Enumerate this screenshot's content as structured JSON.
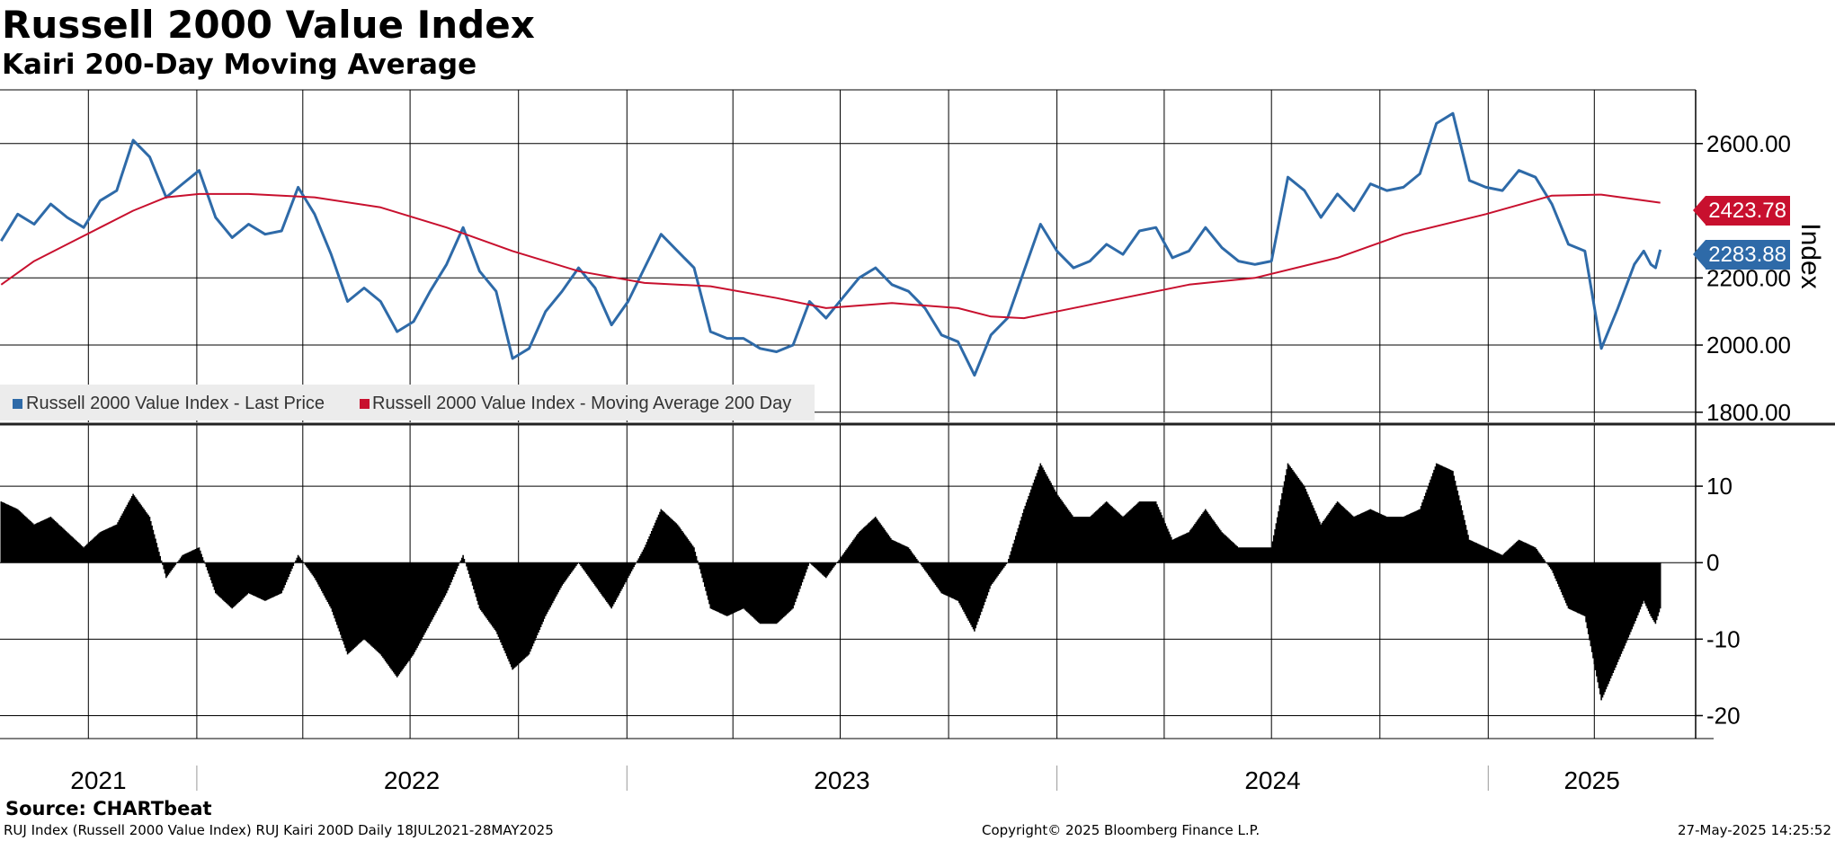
{
  "title": "Russell 2000 Value Index",
  "subtitle": "Kairi 200-Day Moving Average",
  "source": "Source: CHARTbeat",
  "footer": {
    "left": "RUJ Index (Russell 2000 Value Index) RUJ Kairi 200D  Daily 18JUL2021-28MAY2025",
    "center": "Copyright© 2025 Bloomberg Finance L.P.",
    "right": "27-May-2025 14:25:52"
  },
  "legend": {
    "last_price": "Russell 2000 Value Index - Last Price",
    "moving_average": "Russell 2000 Value Index - Moving Average 200 Day"
  },
  "tags": {
    "moving_average": "2423.78",
    "last_price": "2283.88"
  },
  "colors": {
    "last_price": "#2e6aa8",
    "moving_average": "#c8102e",
    "kairi": "#000000"
  },
  "chart_data": [
    {
      "type": "line",
      "title": "Russell 2000 Value Index",
      "ylabel": "Index",
      "ylim": [
        1770,
        2760
      ],
      "xlim": [
        "2021-07-18",
        "2025-06-26"
      ],
      "y_ticks": [
        "1800.00",
        "2000.00",
        "2200.00",
        "2400.00",
        "2600.00"
      ],
      "x_labels": [
        "2021",
        "2022",
        "2023",
        "2024",
        "2025"
      ],
      "legend_position": "bottom-left",
      "grid": true,
      "series": [
        {
          "name": "Russell 2000 Value Index - Last Price",
          "points": [
            [
              "2021-07-19",
              2310
            ],
            [
              "2021-08-02",
              2390
            ],
            [
              "2021-08-16",
              2360
            ],
            [
              "2021-08-30",
              2420
            ],
            [
              "2021-09-13",
              2380
            ],
            [
              "2021-09-27",
              2350
            ],
            [
              "2021-10-11",
              2430
            ],
            [
              "2021-10-25",
              2460
            ],
            [
              "2021-11-08",
              2610
            ],
            [
              "2021-11-22",
              2560
            ],
            [
              "2021-12-06",
              2440
            ],
            [
              "2021-12-20",
              2480
            ],
            [
              "2022-01-03",
              2520
            ],
            [
              "2022-01-17",
              2380
            ],
            [
              "2022-01-31",
              2320
            ],
            [
              "2022-02-14",
              2360
            ],
            [
              "2022-02-28",
              2330
            ],
            [
              "2022-03-14",
              2340
            ],
            [
              "2022-03-28",
              2470
            ],
            [
              "2022-04-11",
              2390
            ],
            [
              "2022-04-25",
              2270
            ],
            [
              "2022-05-09",
              2130
            ],
            [
              "2022-05-23",
              2170
            ],
            [
              "2022-06-06",
              2130
            ],
            [
              "2022-06-20",
              2040
            ],
            [
              "2022-07-04",
              2070
            ],
            [
              "2022-07-18",
              2160
            ],
            [
              "2022-08-01",
              2240
            ],
            [
              "2022-08-15",
              2350
            ],
            [
              "2022-08-29",
              2220
            ],
            [
              "2022-09-12",
              2160
            ],
            [
              "2022-09-26",
              1960
            ],
            [
              "2022-10-10",
              1990
            ],
            [
              "2022-10-24",
              2100
            ],
            [
              "2022-11-07",
              2160
            ],
            [
              "2022-11-21",
              2230
            ],
            [
              "2022-12-05",
              2170
            ],
            [
              "2022-12-19",
              2060
            ],
            [
              "2023-01-02",
              2130
            ],
            [
              "2023-01-16",
              2230
            ],
            [
              "2023-01-30",
              2330
            ],
            [
              "2023-02-13",
              2280
            ],
            [
              "2023-02-27",
              2230
            ],
            [
              "2023-03-13",
              2040
            ],
            [
              "2023-03-27",
              2020
            ],
            [
              "2023-04-10",
              2020
            ],
            [
              "2023-04-24",
              1990
            ],
            [
              "2023-05-08",
              1980
            ],
            [
              "2023-05-22",
              2000
            ],
            [
              "2023-06-05",
              2130
            ],
            [
              "2023-06-19",
              2080
            ],
            [
              "2023-07-03",
              2140
            ],
            [
              "2023-07-17",
              2200
            ],
            [
              "2023-07-31",
              2230
            ],
            [
              "2023-08-14",
              2180
            ],
            [
              "2023-08-28",
              2160
            ],
            [
              "2023-09-11",
              2110
            ],
            [
              "2023-09-25",
              2030
            ],
            [
              "2023-10-09",
              2010
            ],
            [
              "2023-10-23",
              1910
            ],
            [
              "2023-11-06",
              2030
            ],
            [
              "2023-11-20",
              2080
            ],
            [
              "2023-12-04",
              2220
            ],
            [
              "2023-12-18",
              2360
            ],
            [
              "2024-01-01",
              2280
            ],
            [
              "2024-01-15",
              2230
            ],
            [
              "2024-01-29",
              2250
            ],
            [
              "2024-02-12",
              2300
            ],
            [
              "2024-02-26",
              2270
            ],
            [
              "2024-03-11",
              2340
            ],
            [
              "2024-03-25",
              2350
            ],
            [
              "2024-04-08",
              2260
            ],
            [
              "2024-04-22",
              2280
            ],
            [
              "2024-05-06",
              2350
            ],
            [
              "2024-05-20",
              2290
            ],
            [
              "2024-06-03",
              2250
            ],
            [
              "2024-06-17",
              2240
            ],
            [
              "2024-07-01",
              2250
            ],
            [
              "2024-07-15",
              2500
            ],
            [
              "2024-07-29",
              2460
            ],
            [
              "2024-08-12",
              2380
            ],
            [
              "2024-08-26",
              2450
            ],
            [
              "2024-09-09",
              2400
            ],
            [
              "2024-09-23",
              2480
            ],
            [
              "2024-10-07",
              2460
            ],
            [
              "2024-10-21",
              2470
            ],
            [
              "2024-11-04",
              2510
            ],
            [
              "2024-11-18",
              2660
            ],
            [
              "2024-12-02",
              2690
            ],
            [
              "2024-12-16",
              2490
            ],
            [
              "2024-12-30",
              2470
            ],
            [
              "2025-01-13",
              2460
            ],
            [
              "2025-01-27",
              2520
            ],
            [
              "2025-02-10",
              2500
            ],
            [
              "2025-02-24",
              2420
            ],
            [
              "2025-03-10",
              2300
            ],
            [
              "2025-03-24",
              2280
            ],
            [
              "2025-04-07",
              1990
            ],
            [
              "2025-04-21",
              2110
            ],
            [
              "2025-05-05",
              2240
            ],
            [
              "2025-05-13",
              2280
            ],
            [
              "2025-05-19",
              2240
            ],
            [
              "2025-05-23",
              2230
            ],
            [
              "2025-05-27",
              2284
            ]
          ]
        },
        {
          "name": "Russell 2000 Value Index - Moving Average 200 Day",
          "points": [
            [
              "2021-07-19",
              2180
            ],
            [
              "2021-08-16",
              2250
            ],
            [
              "2021-09-13",
              2300
            ],
            [
              "2021-10-11",
              2350
            ],
            [
              "2021-11-08",
              2400
            ],
            [
              "2021-12-06",
              2440
            ],
            [
              "2022-01-03",
              2450
            ],
            [
              "2022-02-14",
              2450
            ],
            [
              "2022-04-11",
              2440
            ],
            [
              "2022-06-06",
              2410
            ],
            [
              "2022-08-01",
              2350
            ],
            [
              "2022-09-26",
              2280
            ],
            [
              "2022-11-21",
              2220
            ],
            [
              "2023-01-16",
              2185
            ],
            [
              "2023-03-13",
              2175
            ],
            [
              "2023-05-08",
              2140
            ],
            [
              "2023-06-19",
              2110
            ],
            [
              "2023-08-14",
              2125
            ],
            [
              "2023-10-09",
              2110
            ],
            [
              "2023-11-06",
              2085
            ],
            [
              "2023-12-04",
              2080
            ],
            [
              "2024-01-29",
              2120
            ],
            [
              "2024-04-22",
              2180
            ],
            [
              "2024-06-17",
              2200
            ],
            [
              "2024-08-26",
              2260
            ],
            [
              "2024-10-21",
              2330
            ],
            [
              "2024-12-30",
              2390
            ],
            [
              "2025-02-24",
              2445
            ],
            [
              "2025-04-07",
              2448
            ],
            [
              "2025-05-27",
              2424
            ]
          ]
        }
      ]
    },
    {
      "type": "bar",
      "title": "RUJ Kairi 200D",
      "ylim": [
        -23,
        18
      ],
      "xlim": [
        "2021-07-18",
        "2025-06-26"
      ],
      "y_ticks": [
        "-20",
        "-10",
        "0",
        "10"
      ],
      "series": [
        {
          "name": "RUJ Kairi 200D",
          "points": [
            [
              "2021-07-19",
              8
            ],
            [
              "2021-08-02",
              7
            ],
            [
              "2021-08-16",
              5
            ],
            [
              "2021-08-30",
              6
            ],
            [
              "2021-09-13",
              4
            ],
            [
              "2021-09-27",
              2
            ],
            [
              "2021-10-11",
              4
            ],
            [
              "2021-10-25",
              5
            ],
            [
              "2021-11-08",
              9
            ],
            [
              "2021-11-22",
              6
            ],
            [
              "2021-12-06",
              -2
            ],
            [
              "2021-12-20",
              1
            ],
            [
              "2022-01-03",
              2
            ],
            [
              "2022-01-17",
              -4
            ],
            [
              "2022-01-31",
              -6
            ],
            [
              "2022-02-14",
              -4
            ],
            [
              "2022-02-28",
              -5
            ],
            [
              "2022-03-14",
              -4
            ],
            [
              "2022-03-28",
              1
            ],
            [
              "2022-04-11",
              -2
            ],
            [
              "2022-04-25",
              -6
            ],
            [
              "2022-05-09",
              -12
            ],
            [
              "2022-05-23",
              -10
            ],
            [
              "2022-06-06",
              -12
            ],
            [
              "2022-06-20",
              -15
            ],
            [
              "2022-07-04",
              -12
            ],
            [
              "2022-07-18",
              -8
            ],
            [
              "2022-08-01",
              -4
            ],
            [
              "2022-08-15",
              1
            ],
            [
              "2022-08-29",
              -6
            ],
            [
              "2022-09-12",
              -9
            ],
            [
              "2022-09-26",
              -14
            ],
            [
              "2022-10-10",
              -12
            ],
            [
              "2022-10-24",
              -7
            ],
            [
              "2022-11-07",
              -3
            ],
            [
              "2022-11-21",
              0
            ],
            [
              "2022-12-05",
              -3
            ],
            [
              "2022-12-19",
              -6
            ],
            [
              "2023-01-02",
              -2
            ],
            [
              "2023-01-16",
              2
            ],
            [
              "2023-01-30",
              7
            ],
            [
              "2023-02-13",
              5
            ],
            [
              "2023-02-27",
              2
            ],
            [
              "2023-03-13",
              -6
            ],
            [
              "2023-03-27",
              -7
            ],
            [
              "2023-04-10",
              -6
            ],
            [
              "2023-04-24",
              -8
            ],
            [
              "2023-05-08",
              -8
            ],
            [
              "2023-05-22",
              -6
            ],
            [
              "2023-06-05",
              0
            ],
            [
              "2023-06-19",
              -2
            ],
            [
              "2023-07-03",
              1
            ],
            [
              "2023-07-17",
              4
            ],
            [
              "2023-07-31",
              6
            ],
            [
              "2023-08-14",
              3
            ],
            [
              "2023-08-28",
              2
            ],
            [
              "2023-09-11",
              -1
            ],
            [
              "2023-09-25",
              -4
            ],
            [
              "2023-10-09",
              -5
            ],
            [
              "2023-10-23",
              -9
            ],
            [
              "2023-11-06",
              -3
            ],
            [
              "2023-11-20",
              0
            ],
            [
              "2023-12-04",
              7
            ],
            [
              "2023-12-18",
              13
            ],
            [
              "2024-01-01",
              9
            ],
            [
              "2024-01-15",
              6
            ],
            [
              "2024-01-29",
              6
            ],
            [
              "2024-02-12",
              8
            ],
            [
              "2024-02-26",
              6
            ],
            [
              "2024-03-11",
              8
            ],
            [
              "2024-03-25",
              8
            ],
            [
              "2024-04-08",
              3
            ],
            [
              "2024-04-22",
              4
            ],
            [
              "2024-05-06",
              7
            ],
            [
              "2024-05-20",
              4
            ],
            [
              "2024-06-03",
              2
            ],
            [
              "2024-06-17",
              2
            ],
            [
              "2024-07-01",
              2
            ],
            [
              "2024-07-15",
              13
            ],
            [
              "2024-07-29",
              10
            ],
            [
              "2024-08-12",
              5
            ],
            [
              "2024-08-26",
              8
            ],
            [
              "2024-09-09",
              6
            ],
            [
              "2024-09-23",
              7
            ],
            [
              "2024-10-07",
              6
            ],
            [
              "2024-10-21",
              6
            ],
            [
              "2024-11-04",
              7
            ],
            [
              "2024-11-18",
              13
            ],
            [
              "2024-12-02",
              12
            ],
            [
              "2024-12-16",
              3
            ],
            [
              "2024-12-30",
              2
            ],
            [
              "2025-01-13",
              1
            ],
            [
              "2025-01-27",
              3
            ],
            [
              "2025-02-10",
              2
            ],
            [
              "2025-02-24",
              -1
            ],
            [
              "2025-03-10",
              -6
            ],
            [
              "2025-03-24",
              -7
            ],
            [
              "2025-04-07",
              -18
            ],
            [
              "2025-04-21",
              -13
            ],
            [
              "2025-05-05",
              -8
            ],
            [
              "2025-05-13",
              -5
            ],
            [
              "2025-05-19",
              -7
            ],
            [
              "2025-05-23",
              -8
            ],
            [
              "2025-05-27",
              -6
            ]
          ]
        }
      ]
    }
  ]
}
